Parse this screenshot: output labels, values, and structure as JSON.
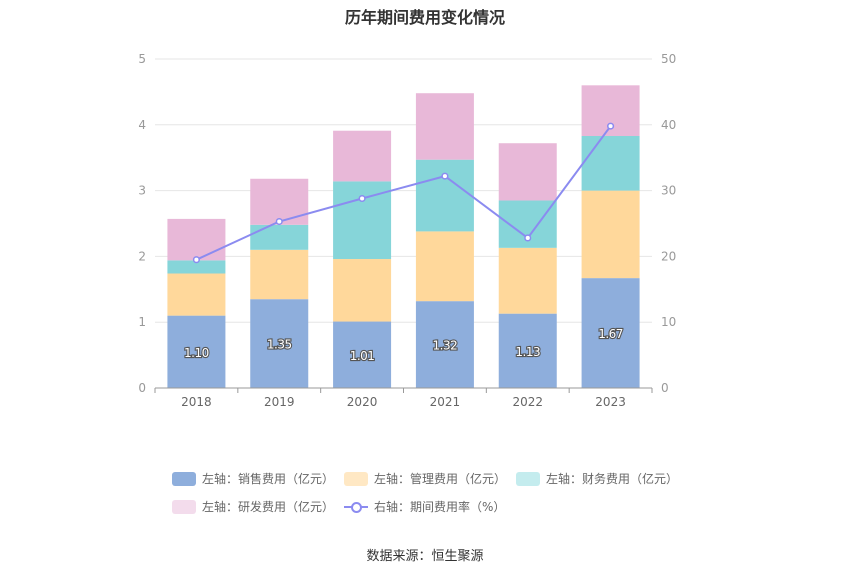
{
  "chart_data": {
    "type": "bar",
    "stacked": true,
    "title": "历年期间费用变化情况",
    "categories": [
      "2018",
      "2019",
      "2020",
      "2021",
      "2022",
      "2023"
    ],
    "y_left": {
      "ticks": [
        "0",
        "1",
        "2",
        "3",
        "4",
        "5"
      ],
      "ylim": [
        0,
        5
      ]
    },
    "y_right": {
      "ticks": [
        "0",
        "10",
        "20",
        "30",
        "40",
        "50"
      ],
      "ylim": [
        0,
        50
      ]
    },
    "grid": true,
    "legend_position": "bottom",
    "series": [
      {
        "name": "左轴：销售费用（亿元）",
        "axis": "left",
        "type": "bar",
        "color": "#8eaedc",
        "values": [
          1.1,
          1.35,
          1.01,
          1.32,
          1.13,
          1.67
        ],
        "labels": [
          "1.10",
          "1.35",
          "1.01",
          "1.32",
          "1.13",
          "1.67"
        ]
      },
      {
        "name": "左轴：管理费用（亿元）",
        "axis": "left",
        "type": "bar",
        "color": "#ffd89b",
        "values": [
          0.64,
          0.75,
          0.95,
          1.06,
          1.0,
          1.33
        ]
      },
      {
        "name": "左轴：财务费用（亿元）",
        "axis": "left",
        "type": "bar",
        "color": "#86d5d9",
        "values": [
          0.2,
          0.38,
          1.18,
          1.09,
          0.72,
          0.83
        ]
      },
      {
        "name": "左轴：研发费用（亿元）",
        "axis": "left",
        "type": "bar",
        "color": "#e8b8d8",
        "values": [
          0.63,
          0.7,
          0.77,
          1.01,
          0.87,
          0.77
        ]
      },
      {
        "name": "右轴：期间费用率（%）",
        "axis": "right",
        "type": "line",
        "color": "#8b8bf0",
        "values": [
          19.5,
          25.3,
          28.8,
          32.2,
          22.8,
          39.8
        ]
      }
    ],
    "legend_colors": [
      "#8eaedc",
      "#ffe8c4",
      "#c4ecee",
      "#f3dcec",
      "#8b8bf0"
    ]
  },
  "source": "数据来源：恒生聚源"
}
